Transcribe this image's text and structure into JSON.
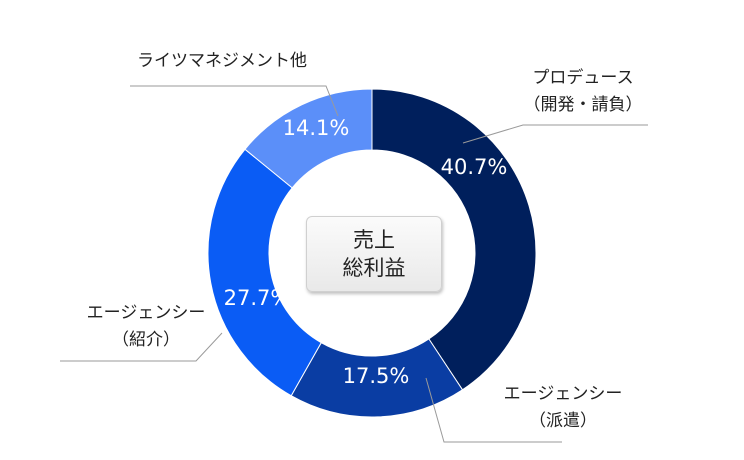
{
  "chart_data": {
    "type": "pie",
    "center_label": [
      "売上",
      "総利益"
    ],
    "unit": "%",
    "slices": [
      {
        "name_lines": [
          "プロデュース",
          "（開発・請負）"
        ],
        "value": 40.7,
        "display": "40.7%",
        "color": "#001f5c"
      },
      {
        "name_lines": [
          "エージェンシー",
          "（派遣）"
        ],
        "value": 17.5,
        "display": "17.5%",
        "color": "#0a3da3"
      },
      {
        "name_lines": [
          "エージェンシー",
          "（紹介）"
        ],
        "value": 27.7,
        "display": "27.7%",
        "color": "#0a5cf5"
      },
      {
        "name_lines": [
          "ライツマネジメント他"
        ],
        "value": 14.1,
        "display": "14.1%",
        "color": "#5b8ff9"
      }
    ]
  }
}
